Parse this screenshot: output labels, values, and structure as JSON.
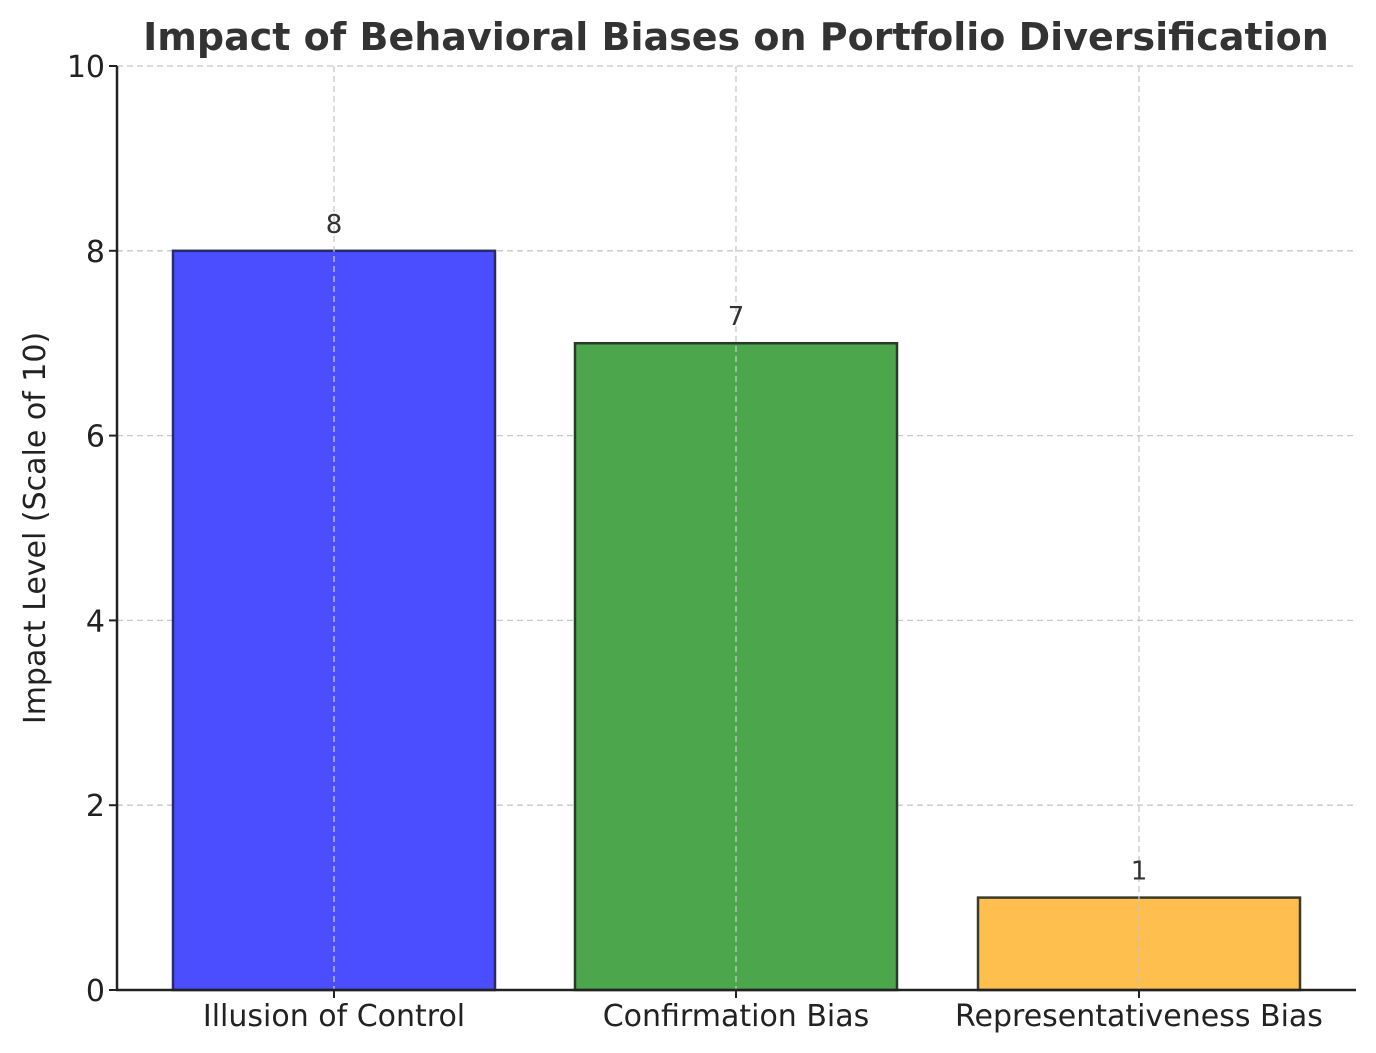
{
  "chart_data": {
    "type": "bar",
    "title": "Impact of Behavioral Biases on Portfolio Diversification",
    "xlabel": "",
    "ylabel": "Impact Level (Scale of 10)",
    "categories": [
      "Illusion of Control",
      "Confirmation Bias",
      "Representativeness Bias"
    ],
    "values": [
      8,
      7,
      1
    ],
    "data_labels": [
      "8",
      "7",
      "1"
    ],
    "colors": [
      "#4a4eff",
      "#4ca64c",
      "#ffbf4f"
    ],
    "edge_colors": [
      "#2a2a6a",
      "#2a3a2a",
      "#3a3a2a"
    ],
    "ylim": [
      0,
      10
    ],
    "yticks": [
      0,
      2,
      4,
      6,
      8,
      10
    ],
    "ytick_labels": [
      "0",
      "2",
      "4",
      "6",
      "8",
      "10"
    ],
    "grid": true,
    "legend": "none"
  }
}
